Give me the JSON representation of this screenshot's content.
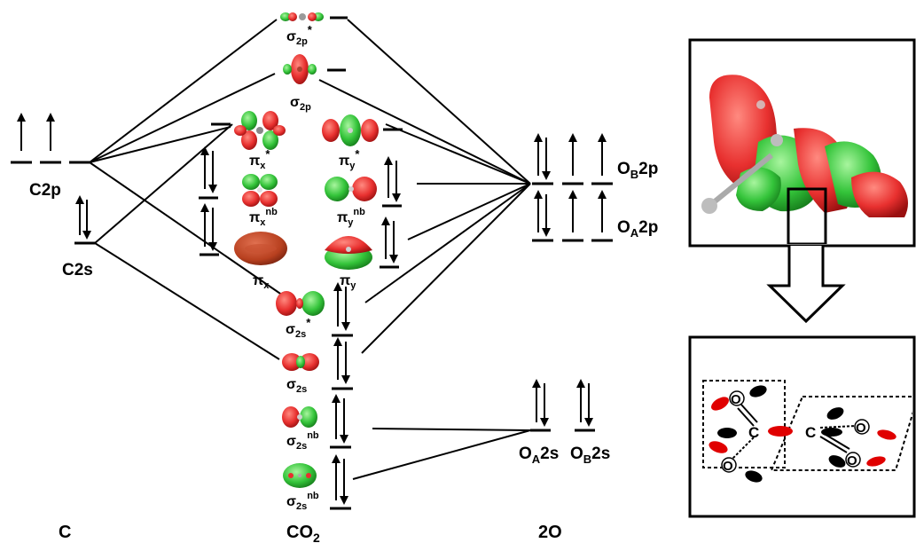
{
  "columns": {
    "left": "C",
    "middle": "CO2",
    "right": "2O"
  },
  "carbon_levels": {
    "p": "C2p",
    "s": "C2s"
  },
  "oxygen_levels": {
    "ob2p": "OB2p",
    "oa2p": "OA2p",
    "oa2s": "OA2s",
    "ob2s": "OB2s"
  },
  "orbitals": {
    "sigma2p_star": "σ2p*",
    "sigma2p": "σ2p",
    "pix_star": "πx*",
    "piy_star": "πy*",
    "pix_nb": "πxnb",
    "piy_nb": "πynb",
    "pix": "πx",
    "piy": "πy",
    "sigma2s_star": "σ2s*",
    "sigma2s": "σ2s",
    "sigma2s_nb_a": "σ2snb",
    "sigma2s_nb_b": "σ2snb"
  },
  "inset": {
    "c_atom": "C",
    "o_atom": "O"
  },
  "colors": {
    "lobe_red": "#e8302f",
    "lobe_green": "#34c43a"
  }
}
